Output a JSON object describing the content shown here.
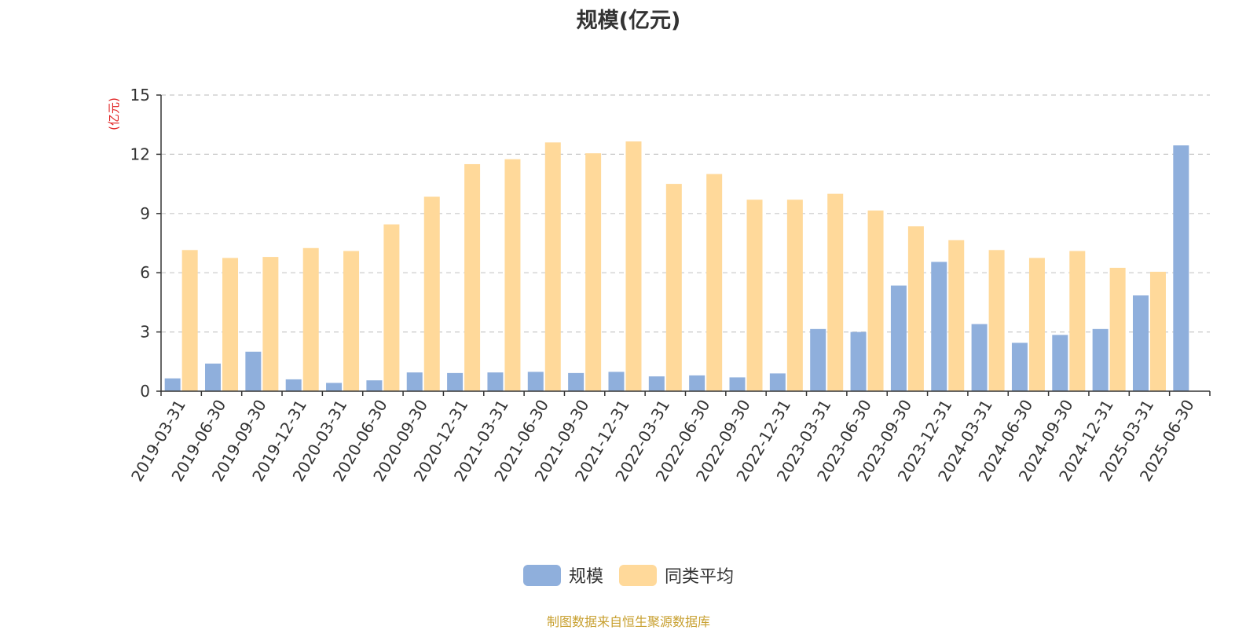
{
  "chart_data": {
    "type": "bar",
    "title": "规模(亿元)",
    "ylabel": "(亿元)",
    "xlabel": "",
    "ylim": [
      0,
      15
    ],
    "yticks": [
      "0",
      "3",
      "6",
      "9",
      "12",
      "15"
    ],
    "grid": true,
    "legend_position": "bottom-center",
    "categories": [
      "2019-03-31",
      "2019-06-30",
      "2019-09-30",
      "2019-12-31",
      "2020-03-31",
      "2020-06-30",
      "2020-09-30",
      "2020-12-31",
      "2021-03-31",
      "2021-06-30",
      "2021-09-30",
      "2021-12-31",
      "2022-03-31",
      "2022-06-30",
      "2022-09-30",
      "2022-12-31",
      "2023-03-31",
      "2023-06-30",
      "2023-09-30",
      "2023-12-31",
      "2024-03-31",
      "2024-06-30",
      "2024-09-30",
      "2024-12-31",
      "2025-03-31",
      "2025-06-30"
    ],
    "series": [
      {
        "name": "规模",
        "color": "#8fafdc",
        "values": [
          0.65,
          1.4,
          2.0,
          0.6,
          0.42,
          0.55,
          0.95,
          0.92,
          0.95,
          0.98,
          0.92,
          0.98,
          0.75,
          0.8,
          0.7,
          0.9,
          3.15,
          3.0,
          5.35,
          6.55,
          3.4,
          2.45,
          2.85,
          3.15,
          4.85,
          12.45
        ]
      },
      {
        "name": "同类平均",
        "color": "#ffd99a",
        "values": [
          7.15,
          6.75,
          6.8,
          7.25,
          7.1,
          8.45,
          9.85,
          11.5,
          11.75,
          12.6,
          12.05,
          12.65,
          10.5,
          11.0,
          9.7,
          9.7,
          10.0,
          9.15,
          8.35,
          7.65,
          7.15,
          6.75,
          7.1,
          6.25,
          6.05,
          null
        ]
      }
    ]
  },
  "source_note": "制图数据来自恒生聚源数据库"
}
